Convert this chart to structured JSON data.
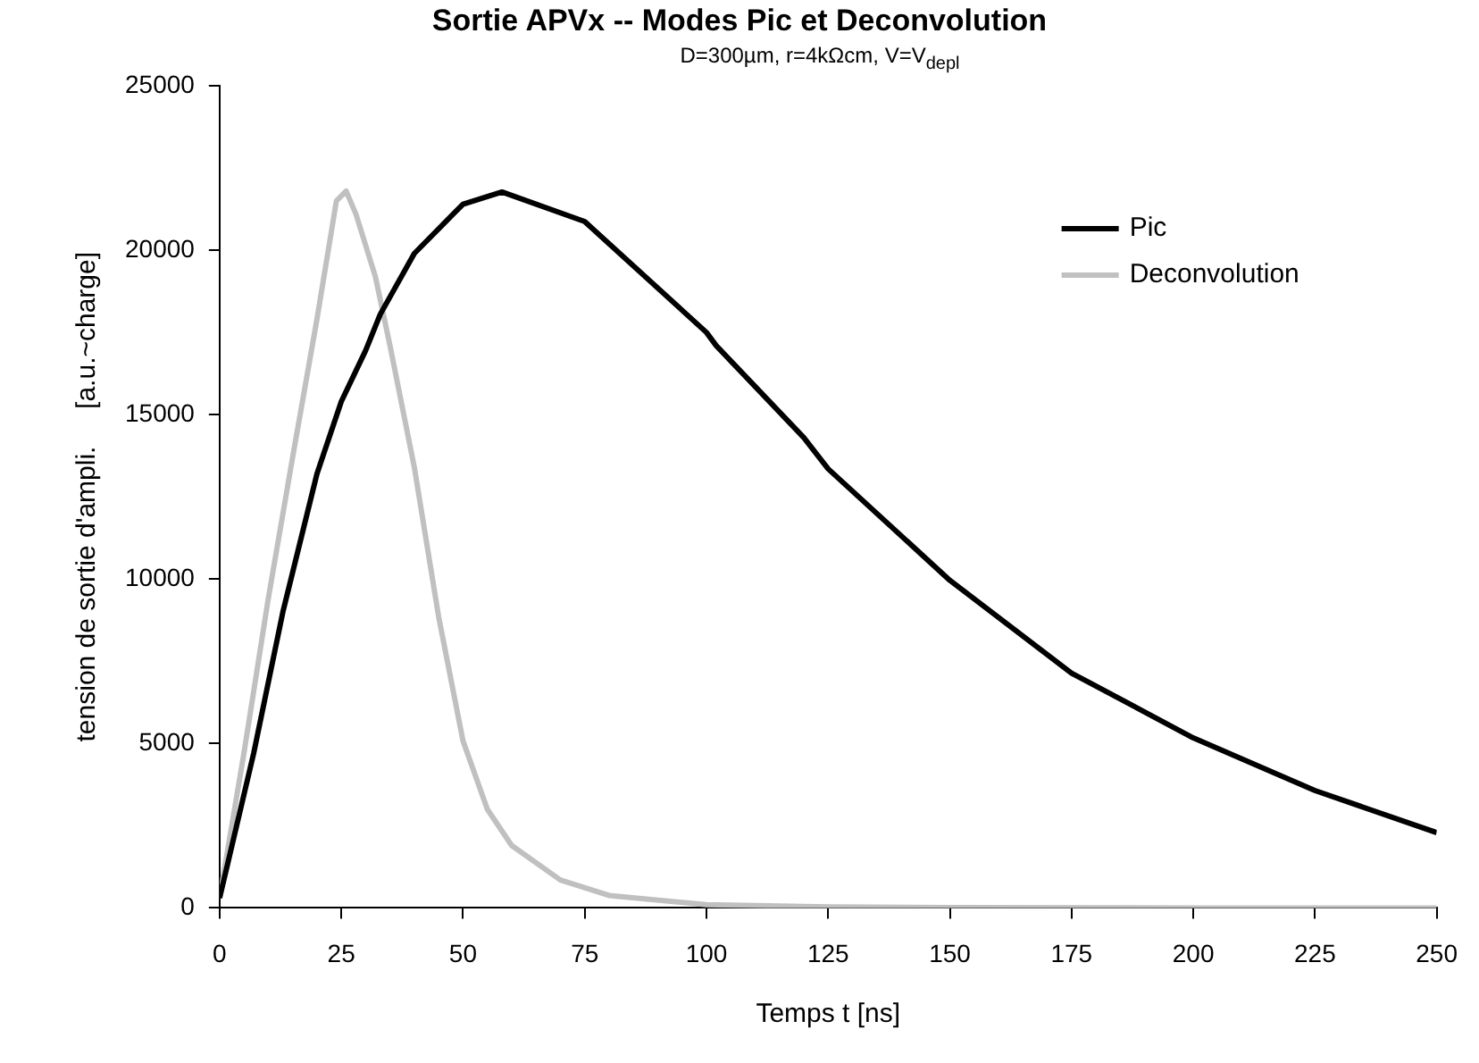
{
  "chart_data": {
    "type": "line",
    "title": "Sortie APVx -- Modes Pic et Deconvolution",
    "subtitle": "D=300µm, r=4kΩcm, V=V$_{depl}$",
    "xlabel": "Temps t [ns]",
    "ylabel": "tension de sortie d'ampli.     [a.u.~charge]",
    "xlim": [
      0,
      250
    ],
    "xticks": [
      0,
      25,
      50,
      75,
      100,
      125,
      150,
      175,
      200,
      225,
      250
    ],
    "ylim": [
      0,
      25000
    ],
    "yticks": [
      0,
      5000,
      10000,
      15000,
      20000,
      25000
    ],
    "grid": false,
    "legend": "top right",
    "marker": "none",
    "line_style": "solid",
    "series": [
      {
        "name": "Pic",
        "color": "#000000",
        "x": [
          0,
          7,
          13,
          20,
          25,
          30,
          33,
          40,
          50,
          58,
          75,
          100,
          102,
          120,
          125,
          150,
          175,
          200,
          225,
          250
        ],
        "values": [
          300,
          4700,
          9000,
          13200,
          15400,
          16950,
          18050,
          19900,
          21400,
          21770,
          20870,
          17500,
          17100,
          14300,
          13350,
          9960,
          7140,
          5170,
          3570,
          2290
        ]
      },
      {
        "name": "Deconvolution",
        "color": "#c0c0c0",
        "x": [
          0,
          5,
          10,
          15,
          20,
          24,
          26,
          28,
          32,
          35,
          40,
          45,
          50,
          55,
          60,
          70,
          80,
          100,
          125,
          150,
          200,
          250
        ],
        "values": [
          300,
          4700,
          9400,
          13700,
          17900,
          21500,
          21800,
          21100,
          19200,
          17100,
          13400,
          8850,
          5080,
          3000,
          1900,
          850,
          380,
          100,
          30,
          10,
          0,
          0
        ]
      }
    ]
  }
}
